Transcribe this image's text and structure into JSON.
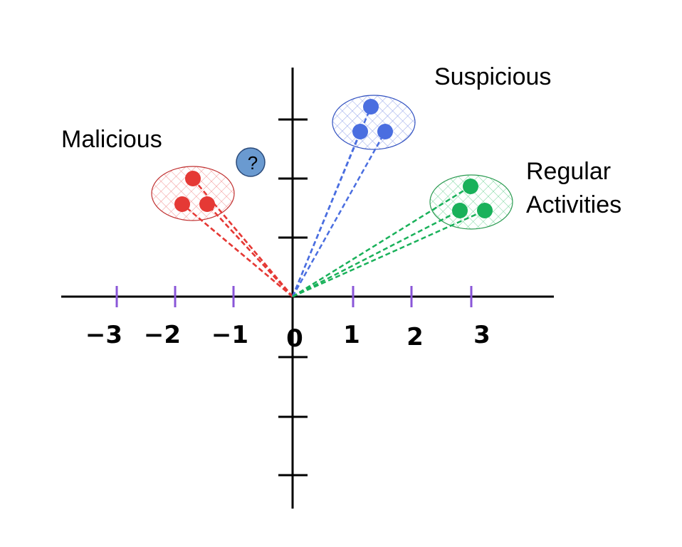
{
  "axes": {
    "x_tick_labels": [
      "−3",
      "−2",
      "−1",
      "0",
      "1",
      "2",
      "3"
    ],
    "x_tick_color": "#8a56d8",
    "axis_color": "#000000"
  },
  "clusters": [
    {
      "id": "malicious",
      "label": "Malicious",
      "color": "#e53935",
      "point_count": 3
    },
    {
      "id": "suspicious",
      "label": "Suspicious",
      "color": "#4a6ee0",
      "point_count": 3
    },
    {
      "id": "regular",
      "label_line1": "Regular",
      "label_line2": "Activities",
      "color": "#19b15a",
      "point_count": 3
    }
  ],
  "unknown_point": {
    "text": "?",
    "color": "#6a9ad0"
  }
}
